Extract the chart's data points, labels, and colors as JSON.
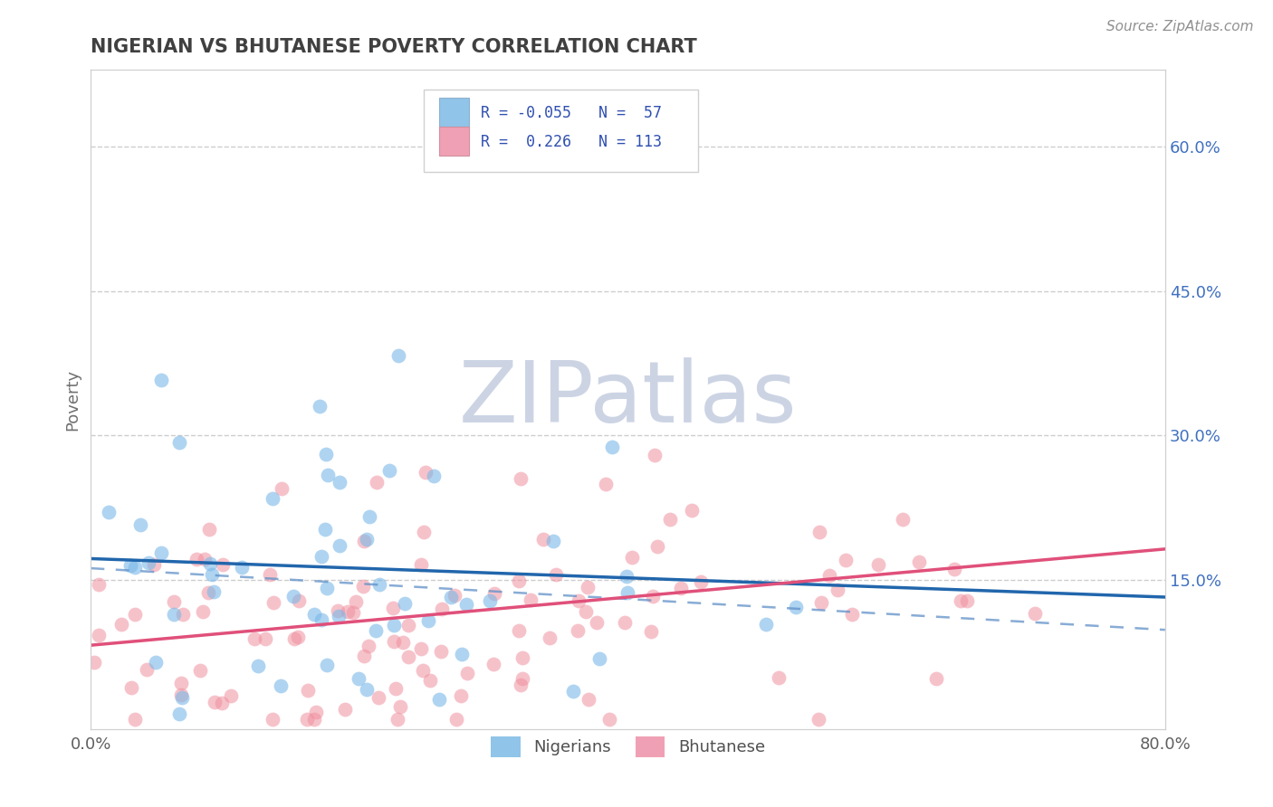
{
  "title": "NIGERIAN VS BHUTANESE POVERTY CORRELATION CHART",
  "source": "Source: ZipAtlas.com",
  "ylabel": "Poverty",
  "watermark": "ZIPatlas",
  "xlim": [
    0.0,
    0.8
  ],
  "ylim": [
    -0.005,
    0.68
  ],
  "yticks_right": [
    0.15,
    0.3,
    0.45,
    0.6
  ],
  "ytick_labels_right": [
    "15.0%",
    "30.0%",
    "45.0%",
    "60.0%"
  ],
  "nigerian_R": -0.055,
  "nigerian_N": 57,
  "bhutanese_R": 0.226,
  "bhutanese_N": 113,
  "blue_dot_color": "#7ab8e8",
  "pink_dot_color": "#f090a0",
  "blue_line_color": "#2166ac",
  "pink_line_color": "#e0507a",
  "blue_dash_color": "#6090c8",
  "background_color": "#ffffff",
  "grid_color": "#c8c8c8",
  "title_color": "#404040",
  "legend_text_color": "#3050b0",
  "watermark_color": "#ccd4e4",
  "nigerian_seed": 12,
  "bhutanese_seed": 77,
  "blue_legend_color": "#90c4e8",
  "pink_legend_color": "#f0a0b4"
}
